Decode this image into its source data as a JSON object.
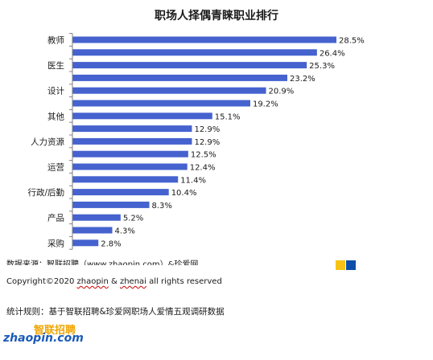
{
  "source_text": "数据来源：智联招聘（www.zhaopin.com）&珍爱网",
  "copyright": {
    "prefix": "Copyright©2020 ",
    "name1": "zhaopin",
    "amp": " & ",
    "name2": "zhenai",
    "suffix": "  all rights reserved"
  },
  "stats_rule": "统计规则：基于智联招聘&珍爱网职场人爱情五观调研数据",
  "logo": {
    "cn": "智联招聘",
    "en": "zhaopin.com"
  },
  "colors": {
    "bar": "#4562cf",
    "yellow": "#f6c315",
    "blue": "#0c4fa8"
  },
  "chart_data": {
    "type": "bar",
    "orientation": "horizontal",
    "title": "职场人择偶青睐职业排行",
    "categories": [
      "教师",
      "",
      "医生",
      "",
      "设计",
      "",
      "其他",
      "",
      "人力资源",
      "",
      "运营",
      "",
      "行政/后勤",
      "",
      "产品",
      "",
      "采购"
    ],
    "values": [
      28.5,
      26.4,
      25.3,
      23.2,
      20.9,
      19.2,
      15.1,
      12.9,
      12.9,
      12.5,
      12.4,
      11.4,
      10.4,
      8.3,
      5.2,
      4.3,
      2.8
    ],
    "value_labels": [
      "28.5%",
      "26.4%",
      "25.3%",
      "23.2%",
      "20.9%",
      "19.2%",
      "15.1%",
      "12.9%",
      "12.9%",
      "12.5%",
      "12.4%",
      "11.4%",
      "10.4%",
      "8.3%",
      "5.2%",
      "4.3%",
      "2.8%"
    ],
    "xlim": [
      0,
      30
    ],
    "grid": false,
    "legend": "none"
  }
}
